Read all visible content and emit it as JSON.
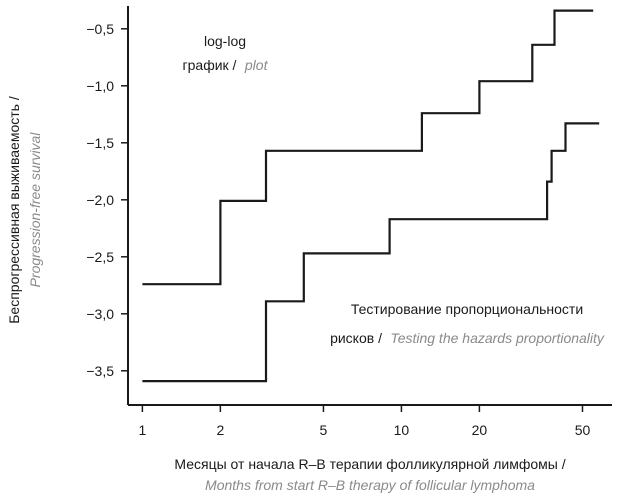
{
  "chart_data": {
    "type": "line",
    "step": true,
    "x_scale": "log",
    "x_ticks": [
      1,
      2,
      5,
      10,
      20,
      50
    ],
    "x_tick_labels": [
      "1",
      "2",
      "5",
      "10",
      "20",
      "50"
    ],
    "xlim": [
      0.88,
      65
    ],
    "y_ticks": [
      -0.5,
      -1.0,
      -1.5,
      -2.0,
      -2.5,
      -3.0,
      -3.5
    ],
    "y_tick_labels": [
      "−0,5",
      "−1,0",
      "−1,5",
      "−2,0",
      "−2,5",
      "−3,0",
      "−3,5"
    ],
    "ylim": [
      -3.8,
      -0.3
    ],
    "xlabel": {
      "ru": "Месяцы от начала R–B терапии фолликулярной лимфомы /",
      "en": "Months from start R–B therapy of follicular lymphoma"
    },
    "ylabel": {
      "ru": "Беспрогрессивная выживаемость /",
      "en": "Progression-free survival"
    },
    "annotations": {
      "top_left": {
        "line1": "log-log",
        "line2_ru": "график /",
        "line2_en": "plot"
      },
      "bottom_right": {
        "line1": "Тестирование пропорциональности",
        "line2_ru": "рисков /",
        "line2_en": "Testing the hazards proportionality"
      }
    },
    "series": [
      {
        "color": "#1a1a1a",
        "x": [
          1,
          2,
          2,
          3,
          3,
          12,
          12,
          20,
          20,
          32,
          32,
          39,
          39,
          55
        ],
        "y": [
          -2.74,
          -2.74,
          -2.01,
          -2.01,
          -1.57,
          -1.57,
          -1.24,
          -1.24,
          -0.96,
          -0.96,
          -0.64,
          -0.64,
          -0.34,
          -0.34
        ]
      },
      {
        "color": "#1a1a1a",
        "x": [
          1,
          3,
          3,
          4.2,
          4.2,
          9,
          9,
          36.5,
          36.5,
          38,
          38,
          43,
          43,
          58
        ],
        "y": [
          -3.59,
          -3.59,
          -2.89,
          -2.89,
          -2.47,
          -2.47,
          -2.17,
          -2.17,
          -1.84,
          -1.84,
          -1.57,
          -1.57,
          -1.33,
          -1.33
        ]
      }
    ]
  }
}
